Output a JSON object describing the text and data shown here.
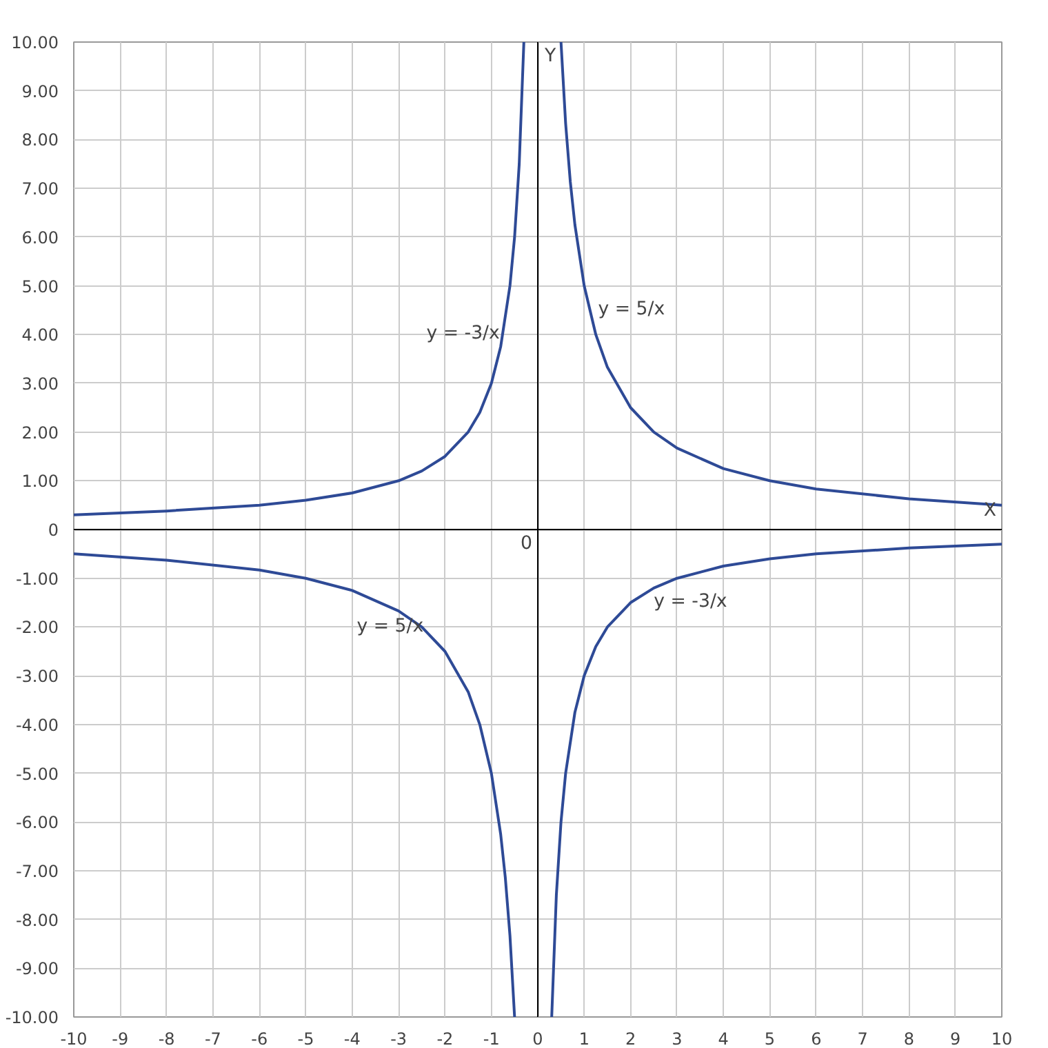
{
  "chart_data": {
    "type": "line",
    "xlabel": "X",
    "ylabel": "Y",
    "xlim": [
      -10,
      10
    ],
    "ylim": [
      -10,
      10
    ],
    "xticks": [
      -10,
      -9,
      -8,
      -7,
      -6,
      -5,
      -4,
      -3,
      -2,
      -1,
      0,
      1,
      2,
      3,
      4,
      5,
      6,
      7,
      8,
      9,
      10
    ],
    "yticks": [
      {
        "value": -10,
        "label": "-10.00"
      },
      {
        "value": -9,
        "label": "-9.00"
      },
      {
        "value": -8,
        "label": "-8.00"
      },
      {
        "value": -7,
        "label": "-7.00"
      },
      {
        "value": -6,
        "label": "-6.00"
      },
      {
        "value": -5,
        "label": "-5.00"
      },
      {
        "value": -4,
        "label": "-4.00"
      },
      {
        "value": -3,
        "label": "-3.00"
      },
      {
        "value": -2,
        "label": "-2.00"
      },
      {
        "value": -1,
        "label": "-1.00"
      },
      0,
      {
        "value": 1,
        "label": "1.00"
      },
      {
        "value": 2,
        "label": "2.00"
      },
      {
        "value": 3,
        "label": "3.00"
      },
      {
        "value": 4,
        "label": "4.00"
      },
      {
        "value": 5,
        "label": "5.00"
      },
      {
        "value": 6,
        "label": "6.00"
      },
      {
        "value": 7,
        "label": "7.00"
      },
      {
        "value": 8,
        "label": "8.00"
      },
      {
        "value": 9,
        "label": "9.00"
      },
      {
        "value": 10,
        "label": "10.00"
      }
    ],
    "grid": true,
    "marker": "none",
    "line_style": "solid",
    "series": [
      {
        "color": "#2e4a96",
        "x": [
          -10,
          -8,
          -6,
          -5,
          -4,
          -3,
          -2.5,
          -2,
          -1.5,
          -1.25,
          -1,
          -0.8,
          -0.7,
          -0.6,
          -0.5,
          null,
          0.5,
          0.6,
          0.7,
          0.8,
          1,
          1.25,
          1.5,
          2,
          2.5,
          3,
          4,
          5,
          6,
          8,
          10
        ],
        "values": [
          -0.5,
          -0.63,
          -0.83,
          -1,
          -1.25,
          -1.67,
          -2,
          -2.5,
          -3.33,
          -4,
          -5,
          -6.25,
          -7.14,
          -8.33,
          -10,
          null,
          10,
          8.33,
          7.14,
          6.25,
          5,
          4,
          3.33,
          2.5,
          2,
          1.67,
          1.25,
          1,
          0.83,
          0.63,
          0.5
        ]
      },
      {
        "color": "#2e4a96",
        "x": [
          -10,
          -8,
          -6,
          -5,
          -4,
          -3,
          -2.5,
          -2,
          -1.5,
          -1.25,
          -1,
          -0.8,
          -0.6,
          -0.5,
          -0.4,
          -0.3,
          null,
          0.3,
          0.4,
          0.5,
          0.6,
          0.8,
          1,
          1.25,
          1.5,
          2,
          2.5,
          3,
          4,
          5,
          6,
          8,
          10
        ],
        "values": [
          0.3,
          0.38,
          0.5,
          0.6,
          0.75,
          1,
          1.2,
          1.5,
          2,
          2.4,
          3,
          3.75,
          5,
          6,
          7.5,
          10,
          null,
          -10,
          -7.5,
          -6,
          -5,
          -3.75,
          -3,
          -2.4,
          -2,
          -1.5,
          -1.2,
          -1,
          -0.75,
          -0.6,
          -0.5,
          -0.38,
          -0.3
        ]
      }
    ],
    "annotations": [
      "y = -3/x",
      "y = 5/x",
      "y = 5/x",
      "y = -3/x",
      "0"
    ]
  }
}
